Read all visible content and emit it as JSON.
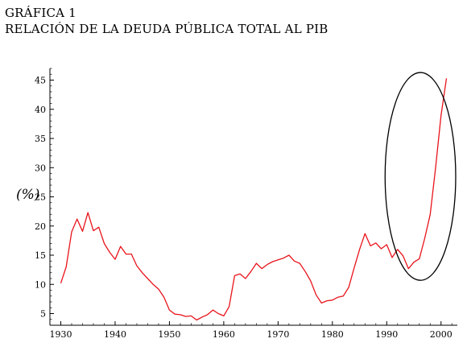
{
  "header": {
    "label": "GRÁFICA 1",
    "title": "RELACIÓN DE LA DEUDA PÚBLICA TOTAL AL PIB"
  },
  "chart_data": {
    "type": "line",
    "title": "RELACIÓN DE LA DEUDA PÚBLICA TOTAL AL PIB",
    "ylabel": "(%)",
    "xlabel": "",
    "xlim": [
      1928,
      2003
    ],
    "ylim": [
      3,
      47
    ],
    "xticks": [
      1930,
      1940,
      1950,
      1960,
      1970,
      1980,
      1990,
      2000
    ],
    "yticks": [
      5,
      10,
      15,
      20,
      25,
      30,
      35,
      40,
      45
    ],
    "grid": false,
    "series_color": "#e8141b",
    "annotation_color": "#000000",
    "annotation": {
      "type": "ellipse",
      "center": [
        1996.2,
        28.5
      ],
      "radii": [
        6.5,
        17.8
      ]
    },
    "series": [
      {
        "x": [
          1930,
          1931,
          1932,
          1933,
          1934,
          1935,
          1936,
          1937,
          1938,
          1939,
          1940,
          1941,
          1942,
          1943,
          1944,
          1945,
          1946,
          1947,
          1948,
          1949,
          1950,
          1951,
          1952,
          1953,
          1954,
          1955,
          1956,
          1957,
          1958,
          1959,
          1960,
          1961,
          1962,
          1963,
          1964,
          1965,
          1966,
          1967,
          1968,
          1969,
          1970,
          1971,
          1972,
          1973,
          1974,
          1975,
          1976,
          1977,
          1978,
          1979,
          1980,
          1981,
          1982,
          1983,
          1984,
          1985,
          1986,
          1987,
          1988,
          1989,
          1990,
          1991,
          1992,
          1993,
          1994,
          1995,
          1996,
          1997,
          1998,
          1999,
          2000,
          2001
        ],
        "y": [
          10.2,
          13.0,
          19.0,
          21.2,
          19.1,
          22.3,
          19.2,
          19.8,
          17.0,
          15.5,
          14.3,
          16.5,
          15.2,
          15.2,
          13.2,
          12.0,
          11.0,
          10.0,
          9.2,
          7.8,
          5.6,
          4.9,
          4.8,
          4.5,
          4.6,
          3.9,
          4.4,
          4.8,
          5.6,
          5.0,
          4.6,
          6.2,
          11.5,
          11.8,
          11.0,
          12.2,
          13.6,
          12.7,
          13.4,
          13.9,
          14.2,
          14.5,
          15.0,
          14.0,
          13.6,
          12.2,
          10.6,
          8.2,
          6.8,
          7.2,
          7.3,
          7.8,
          8.0,
          9.5,
          12.8,
          16.0,
          18.7,
          16.6,
          17.1,
          16.1,
          16.8,
          14.6,
          16.0,
          14.9,
          12.7,
          13.8,
          14.4,
          17.9,
          22.0,
          30.0,
          39.0,
          45.3
        ]
      }
    ]
  }
}
